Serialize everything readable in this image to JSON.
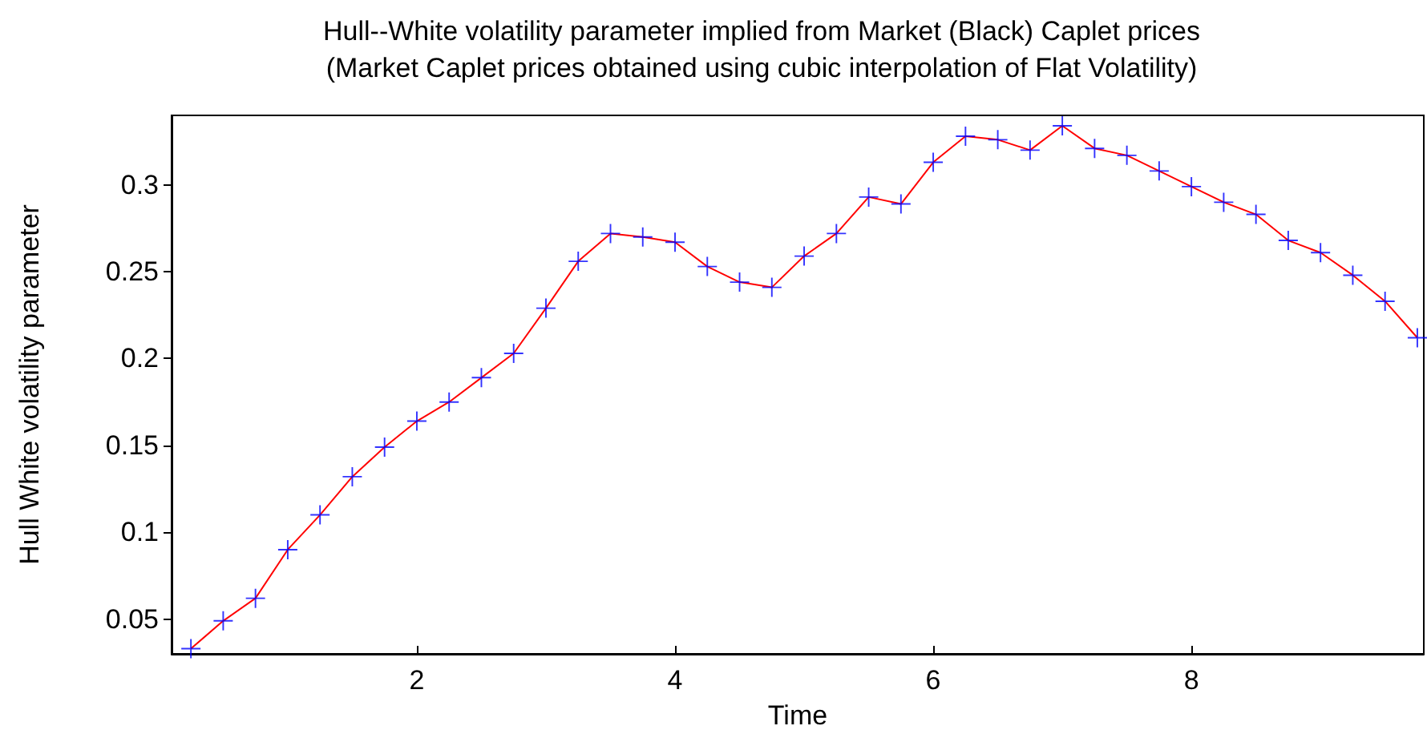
{
  "chart_data": {
    "type": "line",
    "title": "Hull--White volatility parameter implied from Market (Black) Caplet prices",
    "subtitle": "(Market Caplet prices obtained using cubic interpolation of Flat Volatility)",
    "xlabel": "Time",
    "ylabel": "Hull White volatility parameter",
    "x": [
      0.25,
      0.5,
      0.75,
      1.0,
      1.25,
      1.5,
      1.75,
      2.0,
      2.25,
      2.5,
      2.75,
      3.0,
      3.25,
      3.5,
      3.75,
      4.0,
      4.25,
      4.5,
      4.75,
      5.0,
      5.25,
      5.5,
      5.75,
      6.0,
      6.25,
      6.5,
      6.75,
      7.0,
      7.25,
      7.5,
      7.75,
      8.0,
      8.25,
      8.5,
      8.75,
      9.0,
      9.25,
      9.5,
      9.75
    ],
    "series": [
      {
        "color": "#ff0000",
        "marker": "none",
        "values": [
          0.033,
          0.049,
          0.062,
          0.09,
          0.11,
          0.132,
          0.149,
          0.164,
          0.175,
          0.189,
          0.203,
          0.229,
          0.256,
          0.272,
          0.27,
          0.267,
          0.253,
          0.244,
          0.241,
          0.259,
          0.272,
          0.293,
          0.289,
          0.313,
          0.328,
          0.326,
          0.32,
          0.334,
          0.321,
          0.317,
          0.308,
          0.299,
          0.29,
          0.283,
          0.268,
          0.261,
          0.248,
          0.233,
          0.212
        ]
      },
      {
        "type": "scatter",
        "color": "#0000ff",
        "values": [
          0.033,
          0.049,
          0.062,
          0.09,
          0.11,
          0.132,
          0.149,
          0.164,
          0.175,
          0.189,
          0.203,
          0.229,
          0.256,
          0.272,
          0.27,
          0.267,
          0.253,
          0.244,
          0.241,
          0.259,
          0.272,
          0.293,
          0.289,
          0.313,
          0.328,
          0.326,
          0.32,
          0.334,
          0.321,
          0.317,
          0.308,
          0.299,
          0.29,
          0.283,
          0.268,
          0.261,
          0.248,
          0.233,
          0.212
        ]
      }
    ],
    "marker": "cross",
    "line_style": "solid",
    "grid": false,
    "xlim": [
      0.1,
      9.8
    ],
    "xticks": [
      2,
      4,
      6,
      8
    ],
    "ylim": [
      0.03,
      0.34
    ],
    "yticks": [
      0.05,
      0.1,
      0.15,
      0.2,
      0.25,
      0.3
    ]
  }
}
